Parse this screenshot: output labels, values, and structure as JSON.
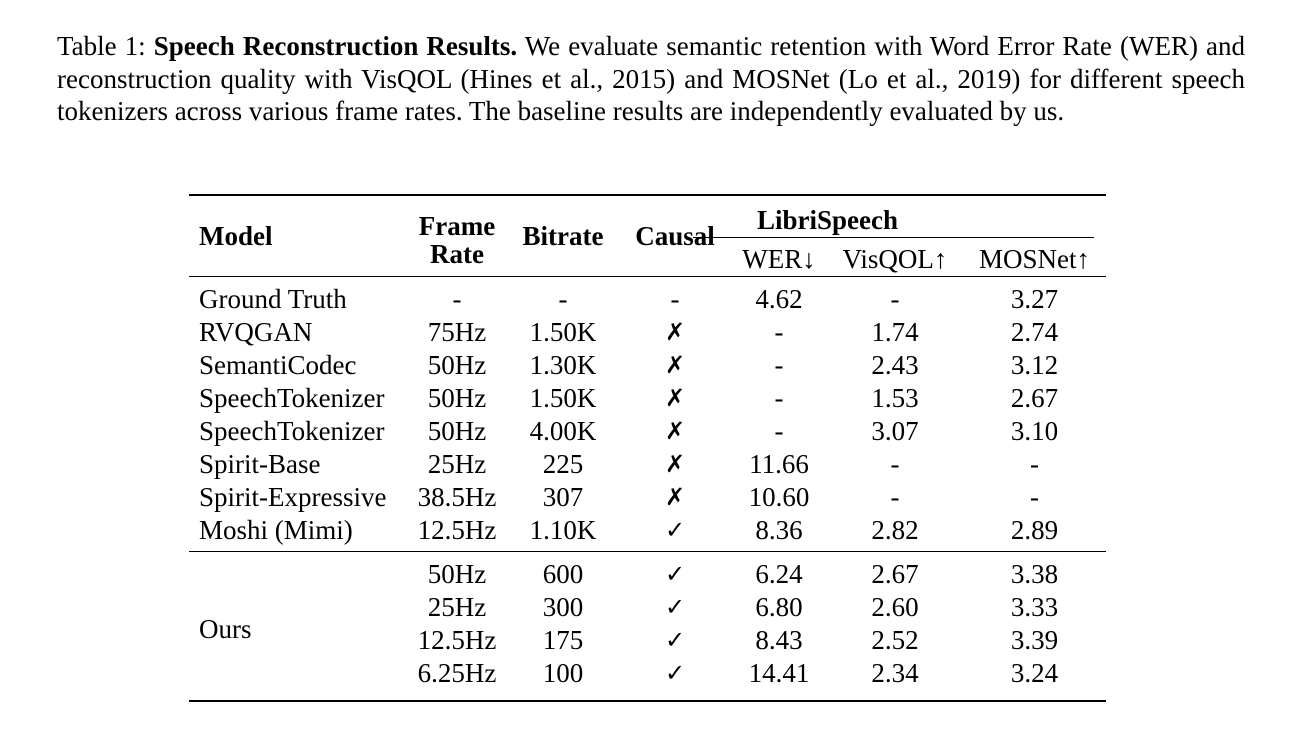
{
  "caption": {
    "prefix": "Table 1: ",
    "title": "Speech Reconstruction Results.",
    "body": " We evaluate semantic retention with Word Error Rate (WER) and reconstruction quality with VisQOL (Hines et al., 2015) and MOSNet (Lo et al., 2019) for different speech tokenizers across various frame rates. The baseline results are independently evaluated by us."
  },
  "headers": {
    "model": "Model",
    "frame_rate_1": "Frame",
    "frame_rate_2": "Rate",
    "bitrate": "Bitrate",
    "causal": "Causal",
    "group": "LibriSpeech",
    "wer": "WER↓",
    "visqol": "VisQOL↑",
    "mosnet": "MOSNet↑"
  },
  "rows": [
    {
      "model": "Ground Truth",
      "frame_rate": "-",
      "bitrate": "-",
      "causal": "-",
      "wer": "4.62",
      "visqol": "-",
      "mosnet": "3.27"
    },
    {
      "model": "RVQGAN",
      "frame_rate": "75Hz",
      "bitrate": "1.50K",
      "causal": "✗",
      "wer": "-",
      "visqol": "1.74",
      "mosnet": "2.74"
    },
    {
      "model": "SemantiCodec",
      "frame_rate": "50Hz",
      "bitrate": "1.30K",
      "causal": "✗",
      "wer": "-",
      "visqol": "2.43",
      "mosnet": "3.12"
    },
    {
      "model": "SpeechTokenizer",
      "frame_rate": "50Hz",
      "bitrate": "1.50K",
      "causal": "✗",
      "wer": "-",
      "visqol": "1.53",
      "mosnet": "2.67"
    },
    {
      "model": "SpeechTokenizer",
      "frame_rate": "50Hz",
      "bitrate": "4.00K",
      "causal": "✗",
      "wer": "-",
      "visqol": "3.07",
      "mosnet": "3.10"
    },
    {
      "model": "Spirit-Base",
      "frame_rate": "25Hz",
      "bitrate": "225",
      "causal": "✗",
      "wer": "11.66",
      "visqol": "-",
      "mosnet": "-"
    },
    {
      "model": "Spirit-Expressive",
      "frame_rate": "38.5Hz",
      "bitrate": "307",
      "causal": "✗",
      "wer": "10.60",
      "visqol": "-",
      "mosnet": "-"
    },
    {
      "model": "Moshi (Mimi)",
      "frame_rate": "12.5Hz",
      "bitrate": "1.10K",
      "causal": "✓",
      "wer": "8.36",
      "visqol": "2.82",
      "mosnet": "2.89"
    }
  ],
  "ours": {
    "model": "Ours",
    "rows": [
      {
        "frame_rate": "50Hz",
        "bitrate": "600",
        "causal": "✓",
        "wer": "6.24",
        "visqol": "2.67",
        "mosnet": "3.38"
      },
      {
        "frame_rate": "25Hz",
        "bitrate": "300",
        "causal": "✓",
        "wer": "6.80",
        "visqol": "2.60",
        "mosnet": "3.33"
      },
      {
        "frame_rate": "12.5Hz",
        "bitrate": "175",
        "causal": "✓",
        "wer": "8.43",
        "visqol": "2.52",
        "mosnet": "3.39"
      },
      {
        "frame_rate": "6.25Hz",
        "bitrate": "100",
        "causal": "✓",
        "wer": "14.41",
        "visqol": "2.34",
        "mosnet": "3.24"
      }
    ]
  }
}
